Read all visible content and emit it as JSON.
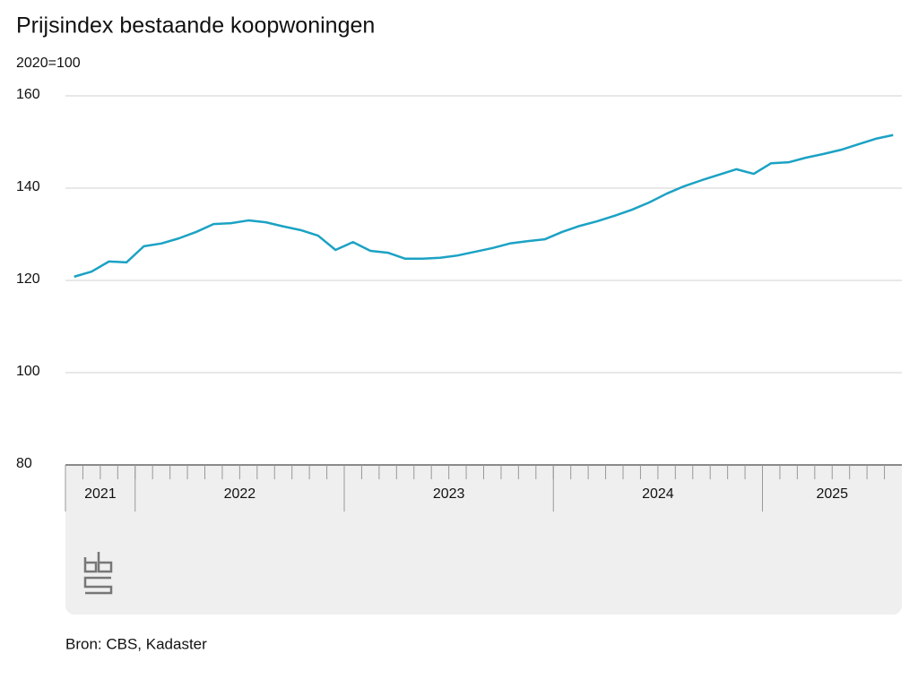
{
  "chart_data": {
    "type": "line",
    "title": "Prijsindex bestaande koopwoningen",
    "subtitle": "2020=100",
    "source": "Bron: CBS, Kadaster",
    "categories": [
      "2021",
      null,
      null,
      null,
      "2022",
      null,
      null,
      null,
      null,
      null,
      null,
      null,
      null,
      null,
      null,
      null,
      "2023",
      null,
      null,
      null,
      null,
      null,
      null,
      null,
      null,
      null,
      null,
      null,
      "2024",
      null,
      null,
      null,
      null,
      null,
      null,
      null,
      null,
      null,
      null,
      null,
      "2025",
      null,
      null,
      null,
      null,
      null,
      null,
      null
    ],
    "series": [
      {
        "name": "Prijsindex",
        "color": "#1ba2c4",
        "values": [
          120.8,
          121.9,
          124.1,
          123.9,
          127.4,
          128.0,
          129.1,
          130.5,
          132.2,
          132.4,
          133.0,
          132.6,
          131.7,
          130.9,
          129.7,
          126.6,
          128.3,
          126.4,
          126.0,
          124.7,
          124.7,
          124.9,
          125.4,
          126.2,
          127.0,
          128.0,
          128.5,
          128.9,
          130.5,
          131.8,
          132.8,
          134.0,
          135.3,
          136.9,
          138.8,
          140.4,
          141.7,
          142.9,
          144.1,
          143.1,
          145.4,
          145.6,
          146.6,
          147.4,
          148.3,
          149.5,
          150.7,
          151.5
        ]
      }
    ],
    "ylim": [
      80,
      160
    ],
    "yticks": [
      80,
      100,
      120,
      140,
      160
    ],
    "grid": true
  }
}
